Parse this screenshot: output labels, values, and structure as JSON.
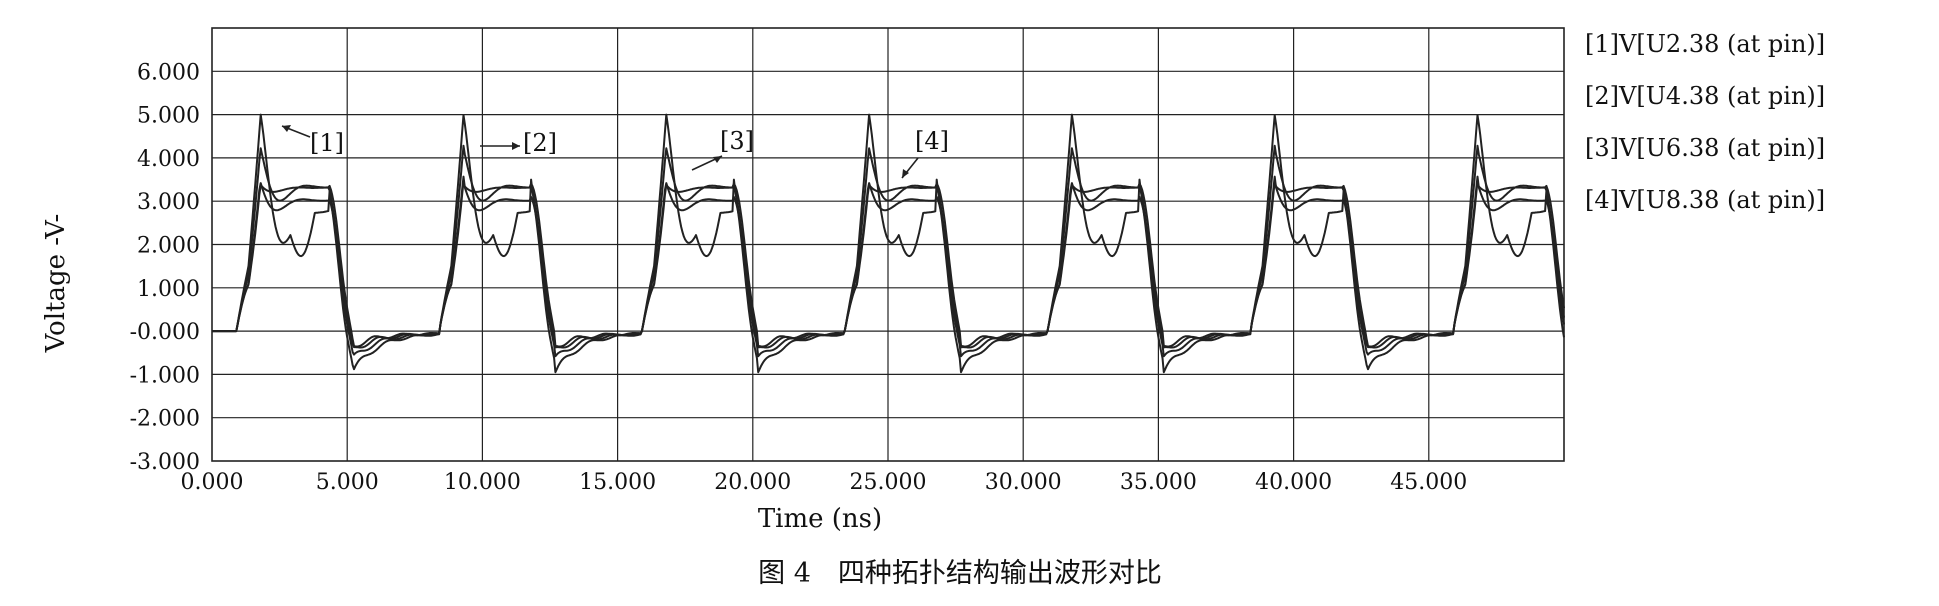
{
  "chart_data": {
    "type": "line",
    "xlabel": "Time (ns)",
    "ylabel": "Voltage  -V-",
    "xlim": [
      0,
      50
    ],
    "ylim": [
      -3,
      7
    ],
    "x_ticks": [
      "0.000",
      "5.000",
      "10.000",
      "15.000",
      "20.000",
      "25.000",
      "30.000",
      "35.000",
      "40.000",
      "45.000"
    ],
    "y_ticks": [
      "6.000",
      "5.000",
      "4.000",
      "3.000",
      "2.000",
      "1.000",
      "-0.000",
      "-1.000",
      "-2.000",
      "-3.000"
    ],
    "grid": true,
    "legend_position": "right",
    "series": [
      {
        "name": "[1]V[U2.38 (at pin)]",
        "tag": "[1]",
        "peak": 5.0,
        "high": 2.6,
        "undershoot": -0.9
      },
      {
        "name": "[2]V[U4.38 (at pin)]",
        "tag": "[2]",
        "peak": 4.3,
        "high": 3.3,
        "undershoot": -0.6
      },
      {
        "name": "[3]V[U6.38 (at pin)]",
        "tag": "[3]",
        "peak": 3.6,
        "high": 3.0,
        "undershoot": -0.4
      },
      {
        "name": "[4]V[U8.38 (at pin)]",
        "tag": "[4]",
        "peak": 3.5,
        "high": 3.3,
        "undershoot": -0.3
      }
    ],
    "period_ns": 7.5,
    "caption": "图 4　四种拓扑结构输出波形对比"
  }
}
